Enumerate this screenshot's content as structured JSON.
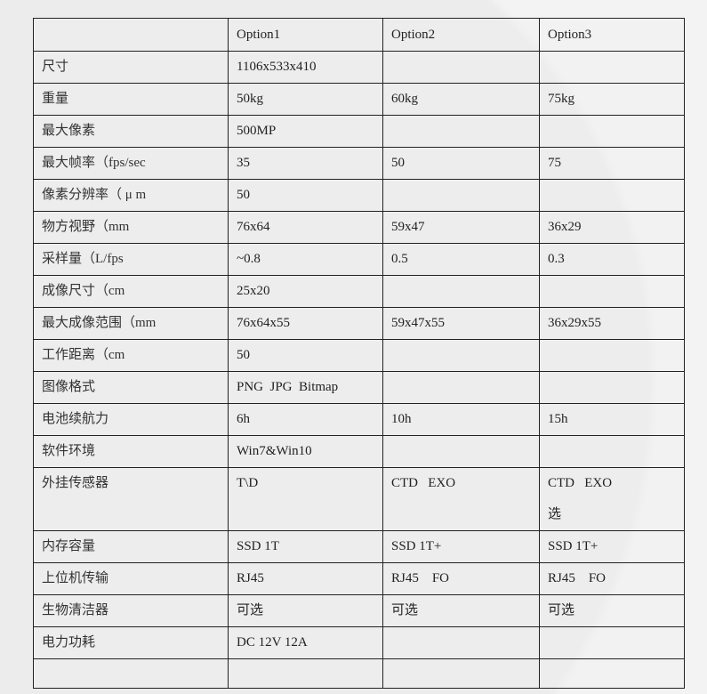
{
  "table": {
    "headers": [
      "",
      "Option1",
      "Option2",
      "Option3"
    ],
    "rows": [
      [
        "尺寸",
        "1106x533x410",
        "",
        ""
      ],
      [
        "重量",
        "50kg",
        "60kg",
        "75kg"
      ],
      [
        "最大像素",
        "500MP",
        "",
        ""
      ],
      [
        "最大帧率（fps/sec",
        "35",
        "50",
        "75"
      ],
      [
        "像素分辨率（ μ m",
        "50",
        "",
        ""
      ],
      [
        "物方视野（mm",
        "76x64",
        "59x47",
        "36x29"
      ],
      [
        "采样量（L/fps",
        "~0.8",
        "0.5",
        "0.3"
      ],
      [
        "成像尺寸（cm",
        "25x20",
        "",
        ""
      ],
      [
        "最大成像范围（mm",
        "76x64x55",
        "59x47x55",
        "36x29x55"
      ],
      [
        "工作距离（cm",
        "50",
        "",
        ""
      ],
      [
        "图像格式",
        "PNG  JPG  Bitmap",
        "",
        ""
      ],
      [
        "电池续航力",
        "6h",
        "10h",
        "15h"
      ],
      [
        "软件环境",
        "Win7&Win10",
        "",
        ""
      ],
      [
        "外挂传感器",
        "T\\D",
        "CTD   EXO",
        "CTD   EXO 选"
      ],
      [
        "内存容量",
        "SSD 1T",
        "SSD 1T+",
        "SSD 1T+"
      ],
      [
        "上位机传输",
        "RJ45",
        "RJ45    FO",
        "RJ45    FO"
      ],
      [
        "生物清洁器",
        "可选",
        "可选",
        "可选"
      ],
      [
        "电力功耗",
        "DC 12V 12A",
        "",
        ""
      ],
      [
        "",
        "",
        "",
        ""
      ]
    ]
  }
}
